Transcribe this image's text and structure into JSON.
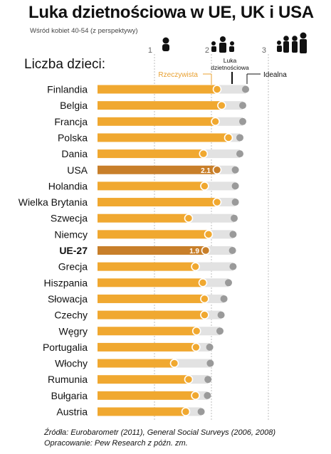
{
  "title": "Luka dzietnościowa w UE, UK i USA",
  "subtitle": "Wśród kobiet 40-54 (z perspektywy)",
  "source_lines": [
    "Źródła: Eurobarometr (2011), General Social Surveys (2006, 2008)",
    "Opracowanie: Pew Research z późn. zm."
  ],
  "colors": {
    "actual": "#f0a830",
    "highlight": "#c87f2a",
    "ideal": "#9a9a9a",
    "gap_bar": "#e2e2e2",
    "ideal_label": "#111111",
    "actual_label": "#e8a030"
  },
  "icons": [
    "child-icon",
    "family-two-children-icon",
    "family-three-children-icon"
  ],
  "chart_data": {
    "type": "bar",
    "ylabel": "Liczba dzieci:",
    "xlim": [
      0,
      3.5
    ],
    "xticks": [
      1,
      2,
      3
    ],
    "grid": true,
    "legend": {
      "actual": "Rzeczywista",
      "gap": "Luka dzietnościowa",
      "ideal": "Idealna"
    },
    "categories": [
      "Finlandia",
      "Belgia",
      "Francja",
      "Polska",
      "Dania",
      "USA",
      "Holandia",
      "Wielka Brytania",
      "Szwecja",
      "Niemcy",
      "UE-27",
      "Grecja",
      "Hiszpania",
      "Słowacja",
      "Czechy",
      "Węgry",
      "Portugalia",
      "Włochy",
      "Rumunia",
      "Bułgaria",
      "Austria"
    ],
    "highlighted": [
      "USA",
      "UE-27"
    ],
    "series": [
      {
        "name": "Rzeczywista",
        "values": [
          2.1,
          2.18,
          2.07,
          2.3,
          1.86,
          2.1,
          1.88,
          2.1,
          1.6,
          1.95,
          1.9,
          1.72,
          1.85,
          1.88,
          1.88,
          1.74,
          1.73,
          1.35,
          1.6,
          1.72,
          1.55
        ]
      },
      {
        "name": "Idealna",
        "values": [
          2.6,
          2.55,
          2.55,
          2.5,
          2.5,
          2.42,
          2.42,
          2.42,
          2.4,
          2.38,
          2.37,
          2.38,
          2.3,
          2.22,
          2.17,
          2.15,
          1.97,
          1.98,
          1.94,
          1.93,
          1.82
        ]
      }
    ],
    "data_labels": {
      "USA": "2.1",
      "UE-27": "1.9"
    }
  }
}
